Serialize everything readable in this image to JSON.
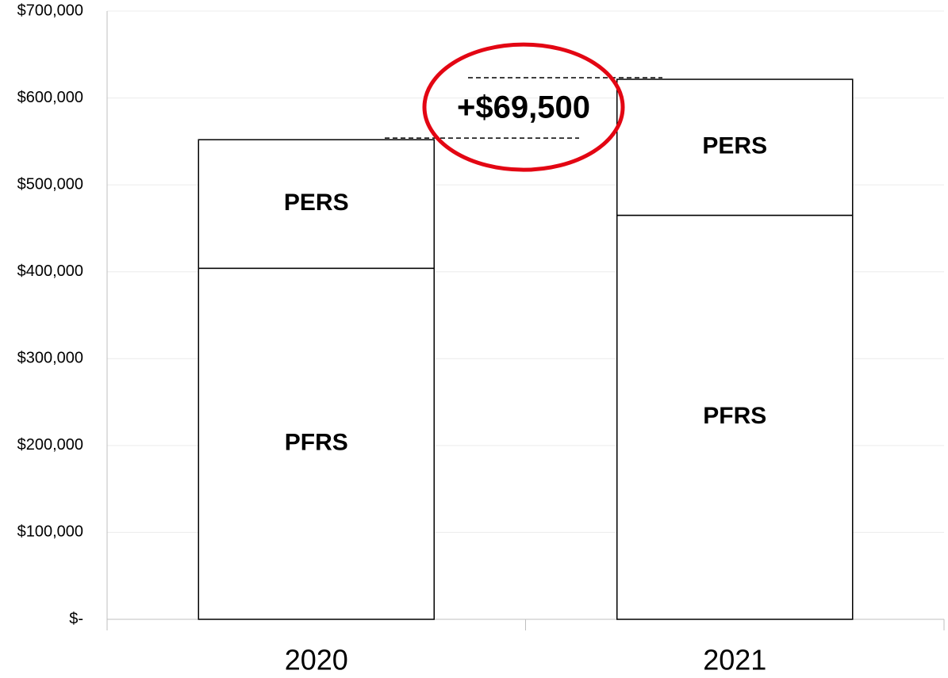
{
  "chart_data": {
    "type": "stacked_bar",
    "categories": [
      "2020",
      "2021"
    ],
    "series": [
      {
        "name": "PFRS",
        "color": "#ffffff",
        "values": [
          404000,
          465000
        ]
      },
      {
        "name": "PERS",
        "color": "#ffffff",
        "values": [
          148000,
          156500
        ]
      }
    ],
    "annotation": "+$69,500",
    "ylim": [
      0,
      700000
    ],
    "yticks": [
      {
        "value": 0,
        "label": "$-"
      },
      {
        "value": 100000,
        "label": "$100,000"
      },
      {
        "value": 200000,
        "label": "$200,000"
      },
      {
        "value": 300000,
        "label": "$300,000"
      },
      {
        "value": 400000,
        "label": "$400,000"
      },
      {
        "value": 500000,
        "label": "$500,000"
      },
      {
        "value": 600000,
        "label": "$600,000"
      },
      {
        "value": 700000,
        "label": "$700,000"
      }
    ],
    "grid": true
  }
}
